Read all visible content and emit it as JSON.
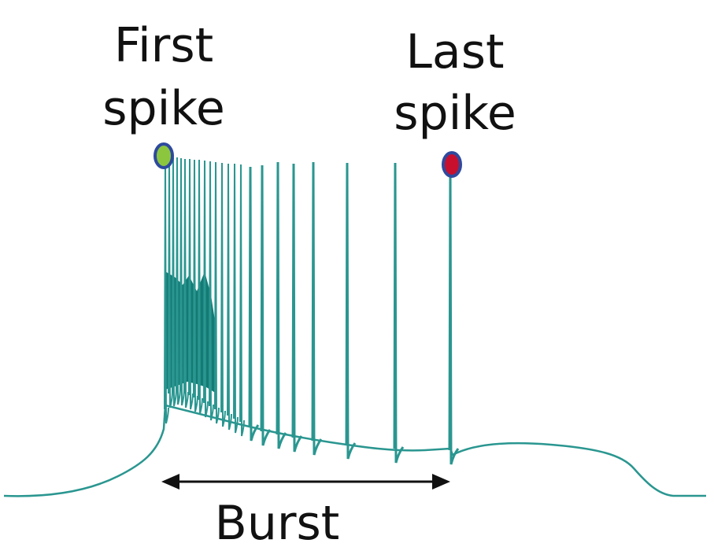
{
  "labels": {
    "first_line1": "First",
    "first_line2": "spike",
    "last_line1": "Last",
    "last_line2": "spike",
    "burst": "Burst"
  },
  "colors": {
    "trace": "#2a9690",
    "trace_dense": "#147a74",
    "first_marker_fill": "#8cc63f",
    "last_marker_fill": "#c8102e",
    "marker_stroke": "#2e4a9e",
    "arrow": "#111111"
  }
}
